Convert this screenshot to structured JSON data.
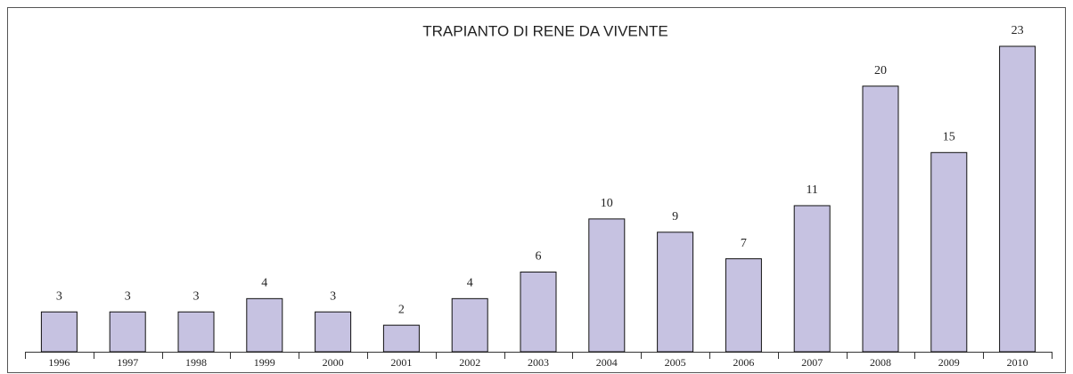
{
  "chart_data": {
    "type": "bar",
    "title": "TRAPIANTO DI RENE DA VIVENTE",
    "categories": [
      "1996",
      "1997",
      "1998",
      "1999",
      "2000",
      "2001",
      "2002",
      "2003",
      "2004",
      "2005",
      "2006",
      "2007",
      "2008",
      "2009",
      "2010"
    ],
    "values": [
      3,
      3,
      3,
      4,
      3,
      2,
      4,
      6,
      10,
      9,
      7,
      11,
      20,
      15,
      23
    ],
    "color": "#c6c2e1"
  }
}
